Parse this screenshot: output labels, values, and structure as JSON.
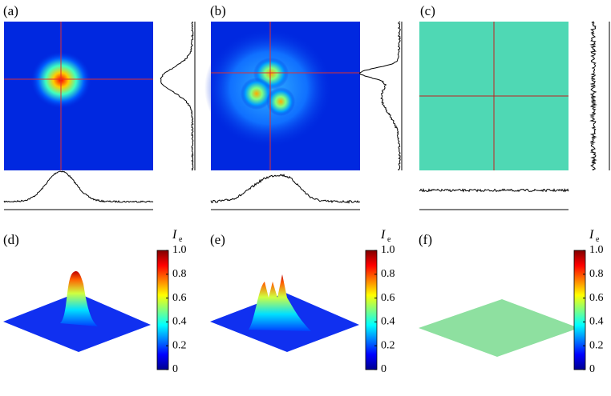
{
  "panels": [
    {
      "label": "(a)"
    },
    {
      "label": "(b)"
    },
    {
      "label": "(c)"
    },
    {
      "label": "(d)",
      "colorbar": {
        "title": "I",
        "subscript": "e",
        "ticks": [
          "1.0",
          "0.8",
          "0.6",
          "0.4",
          "0.2",
          "0"
        ]
      }
    },
    {
      "label": "(e)",
      "colorbar": {
        "title": "I",
        "subscript": "e",
        "ticks": [
          "1.0",
          "0.8",
          "0.6",
          "0.4",
          "0.2",
          "0"
        ]
      }
    },
    {
      "label": "(f)",
      "colorbar": {
        "title": "I",
        "subscript": "e",
        "ticks": [
          "1.0",
          "0.8",
          "0.6",
          "0.4",
          "0.2",
          "0"
        ]
      }
    }
  ]
}
